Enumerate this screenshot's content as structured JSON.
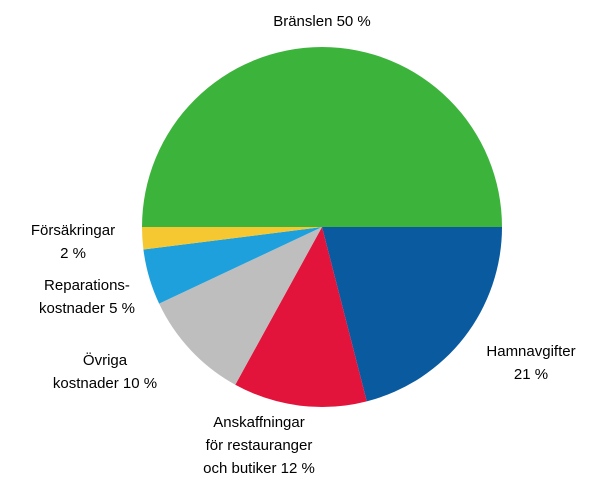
{
  "chart_data": {
    "type": "pie",
    "categories": [
      "Bränslen",
      "Hamnavgifter",
      "Anskaffningar\nför restauranger\noch butiker",
      "Övriga\nkostnader",
      "Reparations-\nkostnader",
      "Försäkringar"
    ],
    "values": [
      50,
      21,
      12,
      10,
      5,
      2
    ],
    "value_labels": [
      "50 %",
      "21 %",
      "12 %",
      "10 %",
      "5 %",
      "2 %"
    ],
    "colors": [
      "#3cb43c",
      "#0a5aa0",
      "#e2143c",
      "#bebebe",
      "#1ea0dc",
      "#f5c832"
    ]
  }
}
